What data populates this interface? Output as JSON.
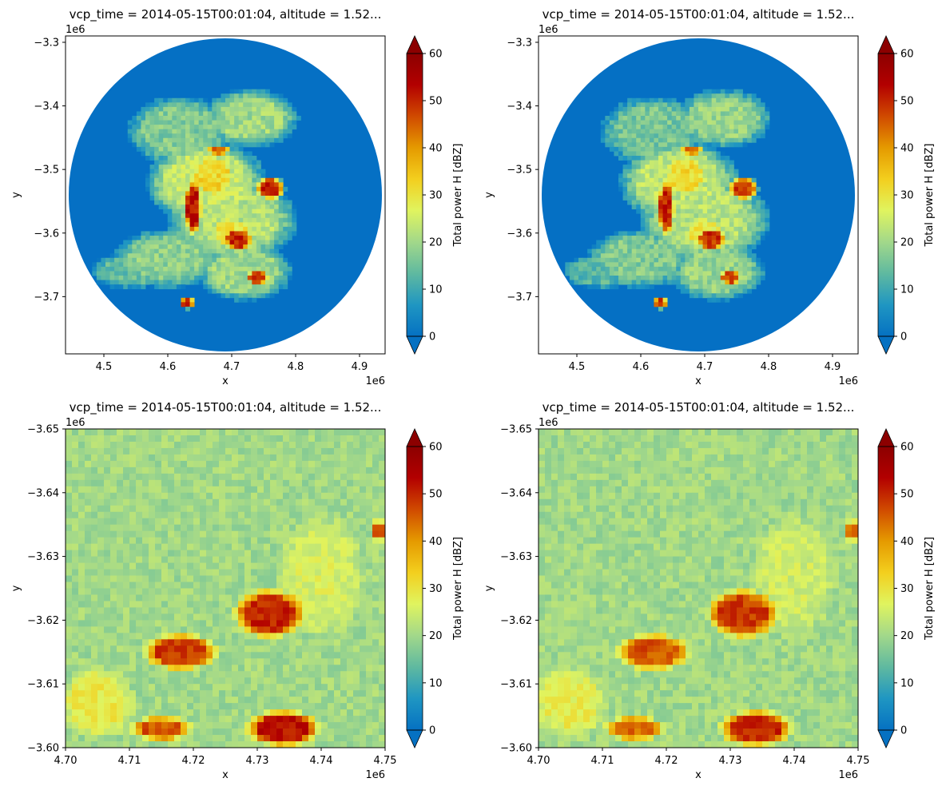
{
  "figure": {
    "colorbar": {
      "label": "Total power H [dBZ]",
      "min": 0,
      "max": 60,
      "extend": "both",
      "ticks": [
        0,
        10,
        20,
        30,
        40,
        50,
        60
      ],
      "tick_labels": [
        "0",
        "10",
        "20",
        "30",
        "40",
        "50",
        "60"
      ],
      "colormap": [
        "#0571c2",
        "#1f96c2",
        "#5fb9a0",
        "#a2d88a",
        "#e0f45f",
        "#f3cf1e",
        "#e59a00",
        "#d04a00",
        "#b30000",
        "#8c0000"
      ]
    },
    "colors": {
      "no_echo": "#0570c4",
      "frame": "#000000"
    }
  },
  "chart_data": [
    {
      "type": "heatmap",
      "title": "vcp_time = 2014-05-15T00:01:04, altitude = 1.52...",
      "xlabel": "x",
      "ylabel": "y",
      "xlim": [
        4.44,
        4.94
      ],
      "ylim": [
        -3.79,
        -3.29
      ],
      "x_offset_label": "1e6",
      "y_offset_label": "1e6",
      "x_ticks": [
        4.5,
        4.6,
        4.7,
        4.8,
        4.9
      ],
      "x_tick_labels": [
        "4.5",
        "4.6",
        "4.7",
        "4.8",
        "4.9"
      ],
      "y_ticks": [
        -3.7,
        -3.6,
        -3.5,
        -3.4,
        -3.3
      ],
      "y_tick_labels": [
        "−3.7",
        "−3.6",
        "−3.5",
        "−3.4",
        "−3.3"
      ],
      "radar_center": [
        4.69,
        -3.54
      ],
      "radar_radius": 0.245,
      "z_background": 0,
      "echo_regions": [
        {
          "x": 4.62,
          "y": -3.44,
          "rx": 0.09,
          "ry": 0.06,
          "z": 17
        },
        {
          "x": 4.73,
          "y": -3.42,
          "rx": 0.08,
          "ry": 0.05,
          "z": 20
        },
        {
          "x": 4.66,
          "y": -3.52,
          "rx": 0.1,
          "ry": 0.07,
          "z": 24
        },
        {
          "x": 4.7,
          "y": -3.58,
          "rx": 0.11,
          "ry": 0.07,
          "z": 22
        },
        {
          "x": 4.6,
          "y": -3.64,
          "rx": 0.09,
          "ry": 0.05,
          "z": 18
        },
        {
          "x": 4.72,
          "y": -3.66,
          "rx": 0.08,
          "ry": 0.05,
          "z": 20
        },
        {
          "x": 4.54,
          "y": -3.66,
          "rx": 0.07,
          "ry": 0.03,
          "z": 14
        },
        {
          "x": 4.67,
          "y": -3.51,
          "rx": 0.04,
          "ry": 0.04,
          "z": 32
        },
        {
          "x": 4.7,
          "y": -3.6,
          "rx": 0.04,
          "ry": 0.03,
          "z": 30
        },
        {
          "x": 4.64,
          "y": -3.56,
          "rx": 0.015,
          "ry": 0.05,
          "z": 52
        },
        {
          "x": 4.76,
          "y": -3.53,
          "rx": 0.025,
          "ry": 0.02,
          "z": 50
        },
        {
          "x": 4.71,
          "y": -3.61,
          "rx": 0.025,
          "ry": 0.02,
          "z": 50
        },
        {
          "x": 4.74,
          "y": -3.67,
          "rx": 0.02,
          "ry": 0.012,
          "z": 48
        },
        {
          "x": 4.63,
          "y": -3.71,
          "rx": 0.012,
          "ry": 0.01,
          "z": 50
        },
        {
          "x": 4.68,
          "y": -3.47,
          "rx": 0.02,
          "ry": 0.008,
          "z": 46
        }
      ]
    },
    {
      "type": "heatmap",
      "title": "vcp_time = 2014-05-15T00:01:04, altitude = 1.52...",
      "xlabel": "x",
      "ylabel": "y",
      "xlim": [
        4.44,
        4.94
      ],
      "ylim": [
        -3.79,
        -3.29
      ],
      "x_offset_label": "1e6",
      "y_offset_label": "1e6",
      "x_ticks": [
        4.5,
        4.6,
        4.7,
        4.8,
        4.9
      ],
      "x_tick_labels": [
        "4.5",
        "4.6",
        "4.7",
        "4.8",
        "4.9"
      ],
      "y_ticks": [
        -3.7,
        -3.6,
        -3.5,
        -3.4,
        -3.3
      ],
      "y_tick_labels": [
        "−3.7",
        "−3.6",
        "−3.5",
        "−3.4",
        "−3.3"
      ],
      "radar_center": [
        4.69,
        -3.54
      ],
      "radar_radius": 0.245,
      "z_background": 0,
      "echo_regions": [
        {
          "x": 4.62,
          "y": -3.44,
          "rx": 0.09,
          "ry": 0.06,
          "z": 16
        },
        {
          "x": 4.73,
          "y": -3.42,
          "rx": 0.08,
          "ry": 0.05,
          "z": 19
        },
        {
          "x": 4.66,
          "y": -3.52,
          "rx": 0.1,
          "ry": 0.07,
          "z": 23
        },
        {
          "x": 4.7,
          "y": -3.58,
          "rx": 0.11,
          "ry": 0.07,
          "z": 22
        },
        {
          "x": 4.6,
          "y": -3.64,
          "rx": 0.09,
          "ry": 0.05,
          "z": 17
        },
        {
          "x": 4.72,
          "y": -3.66,
          "rx": 0.08,
          "ry": 0.05,
          "z": 19
        },
        {
          "x": 4.54,
          "y": -3.66,
          "rx": 0.07,
          "ry": 0.03,
          "z": 13
        },
        {
          "x": 4.67,
          "y": -3.51,
          "rx": 0.04,
          "ry": 0.04,
          "z": 31
        },
        {
          "x": 4.7,
          "y": -3.6,
          "rx": 0.04,
          "ry": 0.03,
          "z": 29
        },
        {
          "x": 4.64,
          "y": -3.56,
          "rx": 0.015,
          "ry": 0.05,
          "z": 50
        },
        {
          "x": 4.76,
          "y": -3.53,
          "rx": 0.025,
          "ry": 0.02,
          "z": 48
        },
        {
          "x": 4.71,
          "y": -3.61,
          "rx": 0.025,
          "ry": 0.02,
          "z": 49
        },
        {
          "x": 4.74,
          "y": -3.67,
          "rx": 0.02,
          "ry": 0.012,
          "z": 46
        },
        {
          "x": 4.63,
          "y": -3.71,
          "rx": 0.012,
          "ry": 0.01,
          "z": 48
        },
        {
          "x": 4.68,
          "y": -3.47,
          "rx": 0.02,
          "ry": 0.008,
          "z": 44
        }
      ]
    },
    {
      "type": "heatmap",
      "title": "vcp_time = 2014-05-15T00:01:04, altitude = 1.52...",
      "xlabel": "x",
      "ylabel": "y",
      "xlim": [
        4.7,
        4.75
      ],
      "ylim": [
        -3.6,
        -3.65
      ],
      "x_offset_label": "1e6",
      "y_offset_label": "1e6",
      "x_ticks": [
        4.7,
        4.71,
        4.72,
        4.73,
        4.74,
        4.75
      ],
      "x_tick_labels": [
        "4.70",
        "4.71",
        "4.72",
        "4.73",
        "4.74",
        "4.75"
      ],
      "y_ticks": [
        -3.6,
        -3.61,
        -3.62,
        -3.63,
        -3.64,
        -3.65
      ],
      "y_tick_labels": [
        "−3.60",
        "−3.61",
        "−3.62",
        "−3.63",
        "−3.64",
        "−3.65"
      ],
      "grid": [
        50,
        50
      ],
      "z_background": 20,
      "echo_regions": [
        {
          "x": 4.712,
          "y": -3.643,
          "rx": 0.012,
          "ry": 0.006,
          "z": 13
        },
        {
          "x": 4.728,
          "y": -3.645,
          "rx": 0.01,
          "ry": 0.005,
          "z": 14
        },
        {
          "x": 4.74,
          "y": -3.627,
          "rx": 0.007,
          "ry": 0.01,
          "z": 26
        },
        {
          "x": 4.745,
          "y": -3.61,
          "rx": 0.006,
          "ry": 0.008,
          "z": 14
        },
        {
          "x": 4.705,
          "y": -3.607,
          "rx": 0.006,
          "ry": 0.006,
          "z": 29
        },
        {
          "x": 4.732,
          "y": -3.621,
          "rx": 0.006,
          "ry": 0.004,
          "z": 50
        },
        {
          "x": 4.718,
          "y": -3.615,
          "rx": 0.006,
          "ry": 0.003,
          "z": 48
        },
        {
          "x": 4.734,
          "y": -3.603,
          "rx": 0.006,
          "ry": 0.003,
          "z": 52
        },
        {
          "x": 4.715,
          "y": -3.603,
          "rx": 0.005,
          "ry": 0.002,
          "z": 46
        },
        {
          "x": 4.749,
          "y": -3.634,
          "rx": 0.001,
          "ry": 0.002,
          "z": 45
        }
      ]
    },
    {
      "type": "heatmap",
      "title": "vcp_time = 2014-05-15T00:01:04, altitude = 1.52...",
      "xlabel": "x",
      "ylabel": "y",
      "xlim": [
        4.7,
        4.75
      ],
      "ylim": [
        -3.6,
        -3.65
      ],
      "x_offset_label": "1e6",
      "y_offset_label": "1e6",
      "x_ticks": [
        4.7,
        4.71,
        4.72,
        4.73,
        4.74,
        4.75
      ],
      "x_tick_labels": [
        "4.70",
        "4.71",
        "4.72",
        "4.73",
        "4.74",
        "4.75"
      ],
      "y_ticks": [
        -3.6,
        -3.61,
        -3.62,
        -3.63,
        -3.64,
        -3.65
      ],
      "y_tick_labels": [
        "−3.60",
        "−3.61",
        "−3.62",
        "−3.63",
        "−3.64",
        "−3.65"
      ],
      "grid": [
        50,
        50
      ],
      "z_background": 20,
      "echo_regions": [
        {
          "x": 4.712,
          "y": -3.643,
          "rx": 0.012,
          "ry": 0.006,
          "z": 14
        },
        {
          "x": 4.728,
          "y": -3.645,
          "rx": 0.01,
          "ry": 0.005,
          "z": 15
        },
        {
          "x": 4.74,
          "y": -3.627,
          "rx": 0.007,
          "ry": 0.01,
          "z": 25
        },
        {
          "x": 4.745,
          "y": -3.61,
          "rx": 0.006,
          "ry": 0.008,
          "z": 15
        },
        {
          "x": 4.705,
          "y": -3.607,
          "rx": 0.006,
          "ry": 0.006,
          "z": 28
        },
        {
          "x": 4.732,
          "y": -3.621,
          "rx": 0.006,
          "ry": 0.004,
          "z": 48
        },
        {
          "x": 4.718,
          "y": -3.615,
          "rx": 0.006,
          "ry": 0.003,
          "z": 46
        },
        {
          "x": 4.734,
          "y": -3.603,
          "rx": 0.006,
          "ry": 0.003,
          "z": 50
        },
        {
          "x": 4.715,
          "y": -3.603,
          "rx": 0.005,
          "ry": 0.002,
          "z": 44
        },
        {
          "x": 4.749,
          "y": -3.634,
          "rx": 0.001,
          "ry": 0.002,
          "z": 44
        }
      ]
    }
  ]
}
